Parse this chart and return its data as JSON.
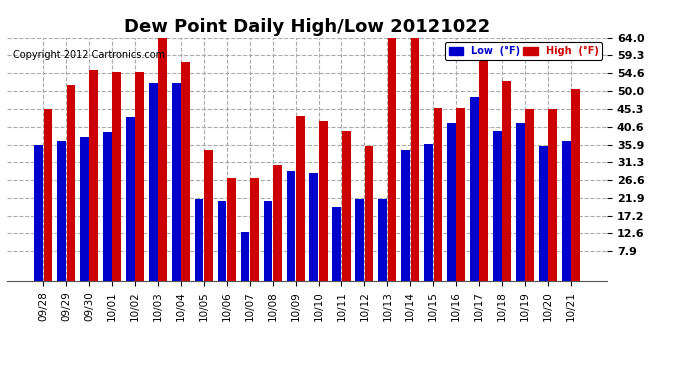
{
  "title": "Dew Point Daily High/Low 20121022",
  "copyright": "Copyright 2012 Cartronics.com",
  "categories": [
    "09/28",
    "09/29",
    "09/30",
    "10/01",
    "10/02",
    "10/03",
    "10/04",
    "10/05",
    "10/06",
    "10/07",
    "10/08",
    "10/09",
    "10/10",
    "10/11",
    "10/12",
    "10/13",
    "10/14",
    "10/15",
    "10/16",
    "10/17",
    "10/18",
    "10/19",
    "10/20",
    "10/21"
  ],
  "low_values": [
    35.9,
    36.9,
    38.0,
    39.2,
    43.0,
    52.0,
    52.0,
    21.5,
    21.0,
    13.0,
    21.0,
    29.0,
    28.5,
    19.5,
    21.5,
    21.5,
    34.5,
    36.0,
    41.5,
    48.5,
    39.5,
    41.5,
    35.5,
    36.9
  ],
  "high_values": [
    45.3,
    51.5,
    55.5,
    55.0,
    55.0,
    64.0,
    57.5,
    34.5,
    27.0,
    27.0,
    30.5,
    43.5,
    42.0,
    39.5,
    35.5,
    64.0,
    64.5,
    45.5,
    45.5,
    59.5,
    52.5,
    45.3,
    45.3,
    50.5
  ],
  "low_color": "#0000cc",
  "high_color": "#cc0000",
  "bg_color": "#ffffff",
  "plot_bg_color": "#ffffff",
  "grid_color": "#aaaaaa",
  "yticks": [
    7.9,
    12.6,
    17.2,
    21.9,
    26.6,
    31.3,
    35.9,
    40.6,
    45.3,
    50.0,
    54.6,
    59.3,
    64.0
  ],
  "ymin": 7.9,
  "ymax": 64.0,
  "title_fontsize": 13,
  "legend_low_label": "Low  (°F)",
  "legend_high_label": "High  (°F)"
}
